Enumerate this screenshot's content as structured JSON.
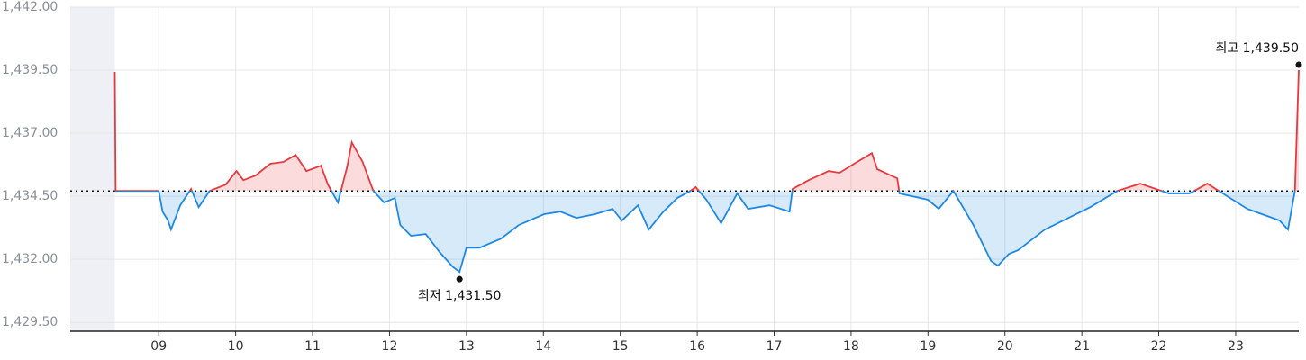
{
  "chart_data": {
    "type": "line",
    "xlim": [
      7.85,
      23.82
    ],
    "ylim": [
      1429.15,
      1442.0
    ],
    "xticks": [
      {
        "value": 9,
        "label": "09"
      },
      10,
      11,
      12,
      13,
      14,
      15,
      16,
      17,
      18,
      19,
      20,
      21,
      22,
      23
    ],
    "yticks": [
      {
        "value": 1429.5,
        "label": "1,429.50"
      },
      {
        "value": 1432.0,
        "label": "1,432.00"
      },
      {
        "value": 1434.5,
        "label": "1,434.50"
      },
      {
        "value": 1437.0,
        "label": "1,437.00"
      },
      {
        "value": 1439.5,
        "label": "1,439.50"
      },
      {
        "value": 1442.0,
        "label": "1,442.00"
      }
    ],
    "grid": true,
    "baseline": 1434.71,
    "shaded_xrange": [
      7.85,
      8.43
    ],
    "up_color": "#e8383d",
    "down_color": "#1e88e5",
    "x": [
      8.43,
      8.44,
      9.0,
      9.05,
      9.12,
      9.16,
      9.28,
      9.42,
      9.52,
      9.66,
      9.87,
      10.01,
      10.1,
      10.26,
      10.45,
      10.62,
      10.78,
      10.92,
      11.11,
      11.2,
      11.33,
      11.45,
      11.51,
      11.65,
      11.79,
      11.93,
      12.07,
      12.14,
      12.28,
      12.47,
      12.65,
      12.82,
      12.91,
      13.0,
      13.17,
      13.45,
      13.68,
      14.01,
      14.22,
      14.43,
      14.67,
      14.9,
      15.02,
      15.23,
      15.37,
      15.56,
      15.74,
      15.91,
      15.98,
      16.12,
      16.31,
      16.52,
      16.66,
      16.94,
      17.2,
      17.24,
      17.45,
      17.71,
      17.85,
      18.04,
      18.27,
      18.34,
      18.6,
      18.63,
      19.0,
      19.14,
      19.33,
      19.59,
      19.82,
      19.91,
      20.05,
      20.17,
      20.52,
      21.11,
      21.46,
      21.76,
      22.13,
      22.4,
      22.63,
      23.15,
      23.57,
      23.68,
      23.77,
      23.82
    ],
    "values": [
      1439.43,
      1434.71,
      1434.71,
      1433.89,
      1433.54,
      1433.18,
      1434.14,
      1434.79,
      1434.07,
      1434.71,
      1434.96,
      1435.5,
      1435.14,
      1435.32,
      1435.79,
      1435.86,
      1436.14,
      1435.5,
      1435.71,
      1434.96,
      1434.25,
      1435.68,
      1436.64,
      1435.86,
      1434.71,
      1434.25,
      1434.43,
      1433.36,
      1432.93,
      1433.0,
      1432.29,
      1431.71,
      1431.5,
      1432.46,
      1432.46,
      1432.82,
      1433.36,
      1433.79,
      1433.89,
      1433.64,
      1433.79,
      1434.0,
      1433.54,
      1434.14,
      1433.18,
      1433.89,
      1434.43,
      1434.71,
      1434.86,
      1434.36,
      1433.43,
      1434.61,
      1434.0,
      1434.14,
      1433.89,
      1434.79,
      1435.14,
      1435.5,
      1435.43,
      1435.79,
      1436.21,
      1435.57,
      1435.21,
      1434.61,
      1434.36,
      1434.0,
      1434.71,
      1433.36,
      1431.93,
      1431.75,
      1432.21,
      1432.36,
      1433.18,
      1434.07,
      1434.71,
      1435.0,
      1434.61,
      1434.61,
      1435.0,
      1434.0,
      1433.54,
      1433.18,
      1434.71,
      1439.5
    ],
    "annotations": [
      {
        "text": "최고 1,439.50",
        "x": 23.82,
        "y": 1439.5
      },
      {
        "text": "최저 1,431.50",
        "x": 12.91,
        "y": 1431.5
      }
    ]
  }
}
